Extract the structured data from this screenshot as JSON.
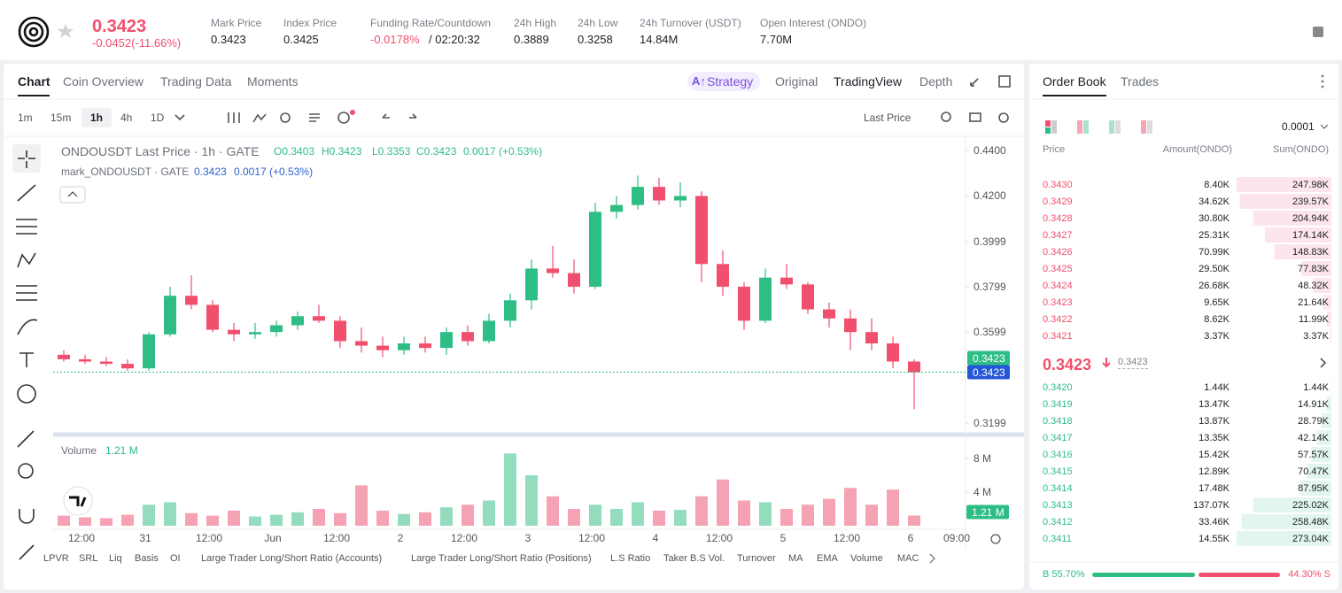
{
  "header": {
    "price": "0.3423",
    "change": "-0.0452(-11.66%)",
    "stats": [
      {
        "label": "Mark Price",
        "value": "0.3423"
      },
      {
        "label": "Index Price",
        "value": "0.3425"
      },
      {
        "label": "Funding Rate/Countdown",
        "value": "-0.0178%",
        "extra": "/ 02:20:32"
      },
      {
        "label": "24h High",
        "value": "0.3889"
      },
      {
        "label": "24h Low",
        "value": "0.3258"
      },
      {
        "label": "24h Turnover (USDT)",
        "value": "14.84M"
      },
      {
        "label": "Open Interest (ONDO)",
        "value": "7.70M"
      }
    ]
  },
  "chart_tabs": [
    "Chart",
    "Coin Overview",
    "Trading Data",
    "Moments"
  ],
  "view_tabs": [
    "Strategy",
    "Original",
    "TradingView",
    "Depth"
  ],
  "intervals": [
    "1m",
    "15m",
    "1h",
    "4h",
    "1D"
  ],
  "price_type": "Last Price",
  "chart_data": {
    "type": "candlestick",
    "legend": "ONDOUSDT Last Price · 1h · GATE",
    "ohlc": [
      "O0.3403",
      "H0.3423",
      "L0.3353",
      "C0.3423",
      "0.0017 (+0.53%)"
    ],
    "mark_label": "mark_ONDOUSDT · GATE",
    "mark_values": [
      "0.3423",
      "0.0017 (+0.53%)"
    ],
    "up_color": "#2ebd85",
    "down_color": "#f0506e",
    "candles": [
      [
        0.35,
        0.352,
        0.347,
        0.348
      ],
      [
        0.348,
        0.35,
        0.346,
        0.347
      ],
      [
        0.347,
        0.349,
        0.345,
        0.346
      ],
      [
        0.346,
        0.348,
        0.343,
        0.344
      ],
      [
        0.344,
        0.36,
        0.343,
        0.359
      ],
      [
        0.359,
        0.38,
        0.358,
        0.376
      ],
      [
        0.376,
        0.385,
        0.37,
        0.372
      ],
      [
        0.372,
        0.374,
        0.36,
        0.361
      ],
      [
        0.361,
        0.364,
        0.356,
        0.359
      ],
      [
        0.359,
        0.364,
        0.357,
        0.36
      ],
      [
        0.36,
        0.365,
        0.358,
        0.363
      ],
      [
        0.363,
        0.369,
        0.361,
        0.367
      ],
      [
        0.367,
        0.372,
        0.364,
        0.365
      ],
      [
        0.365,
        0.367,
        0.353,
        0.356
      ],
      [
        0.356,
        0.362,
        0.351,
        0.354
      ],
      [
        0.354,
        0.358,
        0.349,
        0.352
      ],
      [
        0.352,
        0.358,
        0.35,
        0.355
      ],
      [
        0.355,
        0.358,
        0.351,
        0.353
      ],
      [
        0.353,
        0.362,
        0.35,
        0.36
      ],
      [
        0.36,
        0.363,
        0.354,
        0.356
      ],
      [
        0.356,
        0.368,
        0.355,
        0.365
      ],
      [
        0.365,
        0.377,
        0.362,
        0.374
      ],
      [
        0.374,
        0.392,
        0.37,
        0.388
      ],
      [
        0.388,
        0.398,
        0.384,
        0.386
      ],
      [
        0.386,
        0.392,
        0.377,
        0.38
      ],
      [
        0.38,
        0.417,
        0.379,
        0.413
      ],
      [
        0.413,
        0.42,
        0.41,
        0.416
      ],
      [
        0.416,
        0.429,
        0.414,
        0.424
      ],
      [
        0.424,
        0.428,
        0.416,
        0.418
      ],
      [
        0.418,
        0.426,
        0.415,
        0.42
      ],
      [
        0.42,
        0.422,
        0.382,
        0.39
      ],
      [
        0.39,
        0.396,
        0.376,
        0.38
      ],
      [
        0.38,
        0.382,
        0.361,
        0.365
      ],
      [
        0.365,
        0.388,
        0.364,
        0.384
      ],
      [
        0.384,
        0.39,
        0.379,
        0.381
      ],
      [
        0.381,
        0.382,
        0.368,
        0.37
      ],
      [
        0.37,
        0.373,
        0.362,
        0.366
      ],
      [
        0.366,
        0.37,
        0.352,
        0.36
      ],
      [
        0.36,
        0.366,
        0.352,
        0.355
      ],
      [
        0.355,
        0.358,
        0.344,
        0.347
      ],
      [
        0.347,
        0.348,
        0.326,
        0.3423
      ]
    ],
    "ylim": [
      0.3152,
      0.4459
    ],
    "yticks": [
      {
        "value": 0.44,
        "label": "0.4400"
      },
      {
        "value": 0.42,
        "label": "0.4200"
      },
      0.3999,
      0.3799,
      0.3599,
      0.3199
    ],
    "last_price": 0.3423,
    "mark_price": 0.3423,
    "xlabels": [
      "12:00",
      "31",
      "12:00",
      "Jun",
      "12:00",
      "2",
      "12:00",
      "3",
      "12:00",
      "4",
      "12:00",
      "5",
      "12:00",
      "6",
      "09:00"
    ],
    "volume": {
      "title": "Volume",
      "current": "1.21 M",
      "values": [
        1.2,
        1.0,
        0.9,
        1.3,
        2.5,
        2.8,
        1.5,
        1.2,
        1.8,
        1.1,
        1.3,
        1.6,
        2.0,
        1.5,
        4.8,
        1.8,
        1.4,
        1.6,
        2.2,
        2.5,
        3.0,
        8.6,
        6.0,
        3.5,
        2.0,
        2.5,
        2.0,
        2.8,
        1.8,
        1.9,
        3.5,
        5.5,
        3.0,
        2.8,
        2.0,
        2.5,
        3.2,
        4.5,
        2.5,
        4.3,
        1.21
      ],
      "ylim": [
        0,
        10
      ],
      "yticks": [
        {
          "value": 8,
          "label": "8 M"
        },
        {
          "value": 4,
          "label": "4 M"
        }
      ],
      "badge": {
        "value": 1.21,
        "label": "1.21 M"
      }
    }
  },
  "indicators": [
    "LPVR",
    "SRL",
    "Liq",
    "Basis",
    "OI",
    "Large Trader Long/Short Ratio (Accounts)",
    "Large Trader Long/Short Ratio (Positions)",
    "L.S Ratio",
    "Taker B.S Vol.",
    "Turnover",
    "MA",
    "EMA",
    "Volume",
    "MACD"
  ],
  "order_book": {
    "tabs": [
      "Order Book",
      "Trades"
    ],
    "precision": "0.0001",
    "columns": [
      "Price",
      "Amount(ONDO)",
      "Sum(ONDO)"
    ],
    "asks": [
      [
        "0.3430",
        "8.40K",
        "247.98K"
      ],
      [
        "0.3429",
        "34.62K",
        "239.57K"
      ],
      [
        "0.3428",
        "30.80K",
        "204.94K"
      ],
      [
        "0.3427",
        "25.31K",
        "174.14K"
      ],
      [
        "0.3426",
        "70.99K",
        "148.83K"
      ],
      [
        "0.3425",
        "29.50K",
        "77.83K"
      ],
      [
        "0.3424",
        "26.68K",
        "48.32K"
      ],
      [
        "0.3423",
        "9.65K",
        "21.64K"
      ],
      [
        "0.3422",
        "8.62K",
        "11.99K"
      ],
      [
        "0.3421",
        "3.37K",
        "3.37K"
      ]
    ],
    "mid_price": "0.3423",
    "mid_mark": "0.3423",
    "bids": [
      [
        "0.3420",
        "1.44K",
        "1.44K"
      ],
      [
        "0.3419",
        "13.47K",
        "14.91K"
      ],
      [
        "0.3418",
        "13.87K",
        "28.79K"
      ],
      [
        "0.3417",
        "13.35K",
        "42.14K"
      ],
      [
        "0.3416",
        "15.42K",
        "57.57K"
      ],
      [
        "0.3415",
        "12.89K",
        "70.47K"
      ],
      [
        "0.3414",
        "17.48K",
        "87.95K"
      ],
      [
        "0.3413",
        "137.07K",
        "225.02K"
      ],
      [
        "0.3412",
        "33.46K",
        "258.48K"
      ],
      [
        "0.3411",
        "14.55K",
        "273.04K"
      ]
    ],
    "buy": {
      "value": 55.7,
      "label": "B 55.70%"
    },
    "sell": {
      "value": 44.3,
      "label": "44.30% S"
    }
  }
}
